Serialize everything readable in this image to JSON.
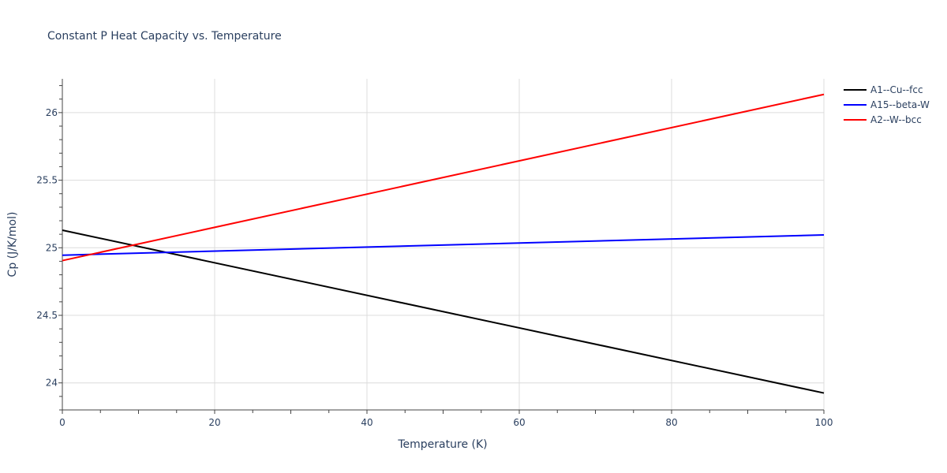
{
  "chart_data": {
    "type": "line",
    "title": "Constant P Heat Capacity vs. Temperature",
    "xlabel": "Temperature (K)",
    "ylabel": "Cp (J/K/mol)",
    "xlim": [
      0,
      100
    ],
    "ylim": [
      23.8,
      26.25
    ],
    "x_ticks": [
      0,
      20,
      40,
      60,
      80,
      100
    ],
    "x_tick_labels": [
      "0",
      "20",
      "40",
      "60",
      "80",
      "100"
    ],
    "y_ticks": [
      24,
      24.5,
      25,
      25.5,
      26
    ],
    "y_tick_labels": [
      "24",
      "24.5",
      "25",
      "25.5",
      "26"
    ],
    "grid": true,
    "legend_position": "top-right",
    "series": [
      {
        "name": "A1--Cu--fcc",
        "color": "#000000",
        "x": [
          0,
          100
        ],
        "y": [
          25.13,
          23.925
        ]
      },
      {
        "name": "A15--beta-W",
        "color": "#0000ff",
        "x": [
          0,
          100
        ],
        "y": [
          24.945,
          25.095
        ]
      },
      {
        "name": "A2--W--bcc",
        "color": "#ff0000",
        "x": [
          0,
          100
        ],
        "y": [
          24.905,
          26.135
        ]
      }
    ]
  }
}
